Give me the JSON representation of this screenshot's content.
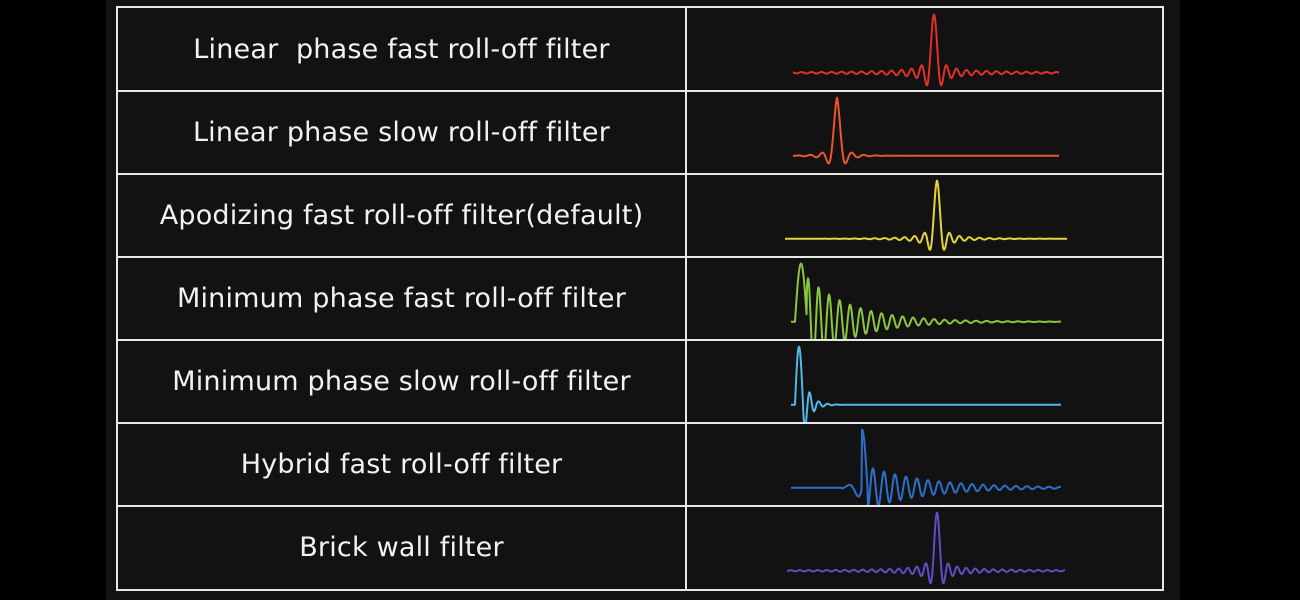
{
  "filters": [
    {
      "label": "Linear  phase fast roll-off filter",
      "color": "#e0312b",
      "type": "linear-fast",
      "icon": "impulse-response-waveform"
    },
    {
      "label": "Linear phase slow roll-off filter",
      "color": "#e8562a",
      "type": "linear-slow",
      "icon": "impulse-response-waveform"
    },
    {
      "label": "Apodizing fast roll-off filter(default)",
      "color": "#e6d23a",
      "type": "apodizing-fast",
      "icon": "impulse-response-waveform"
    },
    {
      "label": "Minimum phase fast roll-off filter",
      "color": "#8cc63f",
      "type": "minimum-fast",
      "icon": "impulse-response-waveform"
    },
    {
      "label": "Minimum phase slow roll-off filter",
      "color": "#4fb9e8",
      "type": "minimum-slow",
      "icon": "impulse-response-waveform"
    },
    {
      "label": "Hybrid fast roll-off filter",
      "color": "#2d6fc9",
      "type": "hybrid-fast",
      "icon": "impulse-response-waveform"
    },
    {
      "label": "Brick wall filter",
      "color": "#5b4fc4",
      "type": "brick-wall",
      "icon": "impulse-response-waveform"
    }
  ]
}
